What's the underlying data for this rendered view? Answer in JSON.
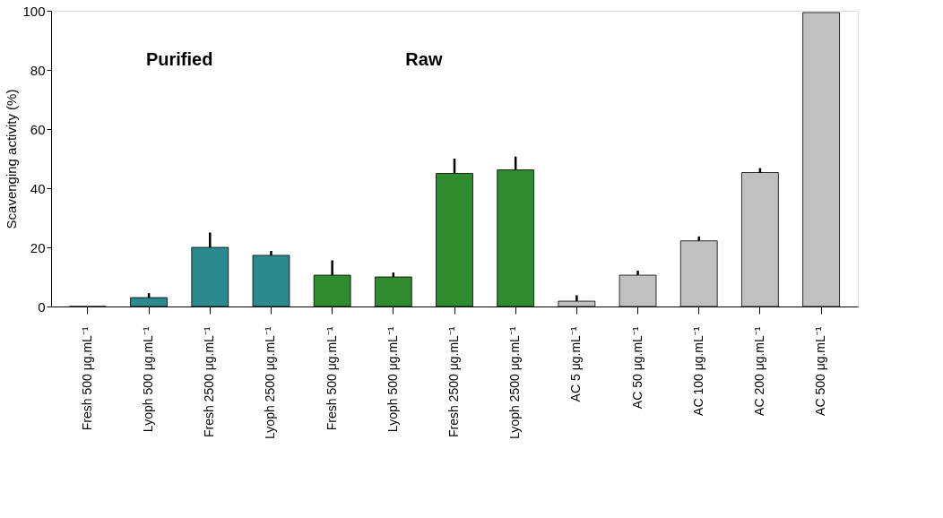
{
  "chart_data": {
    "type": "bar",
    "ylabel": "Scavenging activity (%)",
    "categories": [
      "Fresh 500 μg.mL⁻¹",
      "Lyoph 500 μg.mL⁻¹",
      "Fresh 2500 μg.mL⁻¹",
      "Lyoph 2500 μg.mL⁻¹",
      "Fresh 500 μg.mL⁻¹",
      "Lyoph 500 μg.mL⁻¹",
      "Fresh 2500 μg.mL⁻¹",
      "Lyoph 2500 μg.mL⁻¹",
      "AC 5 μg.mL⁻¹",
      "AC 50 μg.mL⁻¹",
      "AC 100 μg.mL⁻¹",
      "AC 200 μg.mL⁻¹",
      "AC 500 μg.mL⁻¹"
    ],
    "values": [
      0,
      3,
      20,
      17.3,
      10.6,
      10,
      45,
      46.2,
      1.8,
      10.6,
      22.2,
      45.3,
      99.4
    ],
    "errors": [
      null,
      [
        3,
        4.5
      ],
      [
        20,
        25
      ],
      [
        17.3,
        18.8
      ],
      [
        10.6,
        15.6
      ],
      [
        10,
        11.5
      ],
      [
        45,
        50
      ],
      [
        46.2,
        50.7
      ],
      [
        1.8,
        3.8
      ],
      [
        10.6,
        12.1
      ],
      [
        22.2,
        23.7
      ],
      [
        45.3,
        46.8
      ],
      null
    ],
    "colors": [
      "#2a8a8e",
      "#2a8a8e",
      "#2a8a8e",
      "#2a8a8e",
      "#2e8b2e",
      "#2e8b2e",
      "#2e8b2e",
      "#2e8b2e",
      "#c0c0c0",
      "#c0c0c0",
      "#c0c0c0",
      "#c0c0c0",
      "#c0c0c0"
    ],
    "ylim": [
      0,
      100
    ],
    "yticks": [
      0,
      20,
      40,
      60,
      80,
      100
    ],
    "annotations": [
      "Purified",
      "Raw"
    ],
    "grid": false
  }
}
